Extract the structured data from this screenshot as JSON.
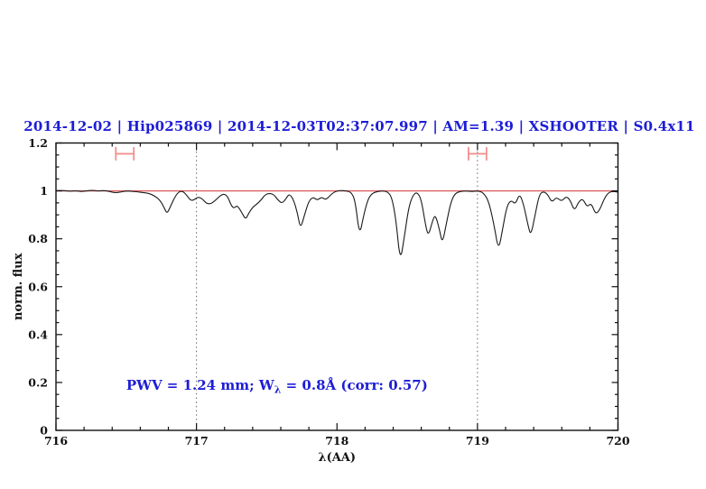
{
  "title": {
    "text": "2014-12-02 | Hip025869 | 2014-12-03T02:37:07.997 | AM=1.39 | XSHOOTER | S0.4x11",
    "color": "#1d1dd6"
  },
  "colors": {
    "spectrum": "#1a1a1a",
    "continuum": "#e06060",
    "marker": "#f29090",
    "guide_line": "#666666",
    "annotation_blue": "#1d1dd6",
    "axis": "#111111"
  },
  "chart_data": {
    "type": "line",
    "title": "2014-12-02 | Hip025869 | 2014-12-03T02:37:07.997 | AM=1.39 | XSHOOTER | S0.4x11",
    "xlabel": "λ(AA)",
    "ylabel": "norm. flux",
    "xlim": [
      716,
      720
    ],
    "ylim": [
      0,
      1.2
    ],
    "grid": "off",
    "legend": "none",
    "x_ticks": [
      716,
      717,
      718,
      719,
      720
    ],
    "x_tick_labels": [
      "716",
      "717",
      "718",
      "719",
      "720"
    ],
    "x_minor_step": 0.2,
    "y_ticks": [
      0,
      0.2,
      0.4,
      0.6,
      0.8,
      1,
      1.2
    ],
    "y_tick_labels": [
      "0",
      "0.2",
      "0.4",
      "0.6",
      "0.8",
      "1",
      "1.2"
    ],
    "y_minor_step": 0.05,
    "dotted_vlines": [
      717,
      719
    ],
    "continuum_line": {
      "flux": 1.0
    },
    "range_markers": [
      {
        "x": 716.49,
        "y": 1.155,
        "half_width": 0.064,
        "cap_half_height": 0.028
      },
      {
        "x": 719.0,
        "y": 1.155,
        "half_width": 0.064,
        "cap_half_height": 0.028
      }
    ],
    "annotation": {
      "x": 716.5,
      "y": 0.17,
      "segments": [
        {
          "t": "PWV  =  1.24  mm;  W"
        },
        {
          "t": "λ",
          "sub": true
        },
        {
          "t": "  =  0.8Å  (corr: 0.57)"
        }
      ]
    },
    "series": [
      {
        "name": "observed-spectrum",
        "points": [
          [
            716.0,
            1.001
          ],
          [
            716.05,
            1.002
          ],
          [
            716.1,
            0.998
          ],
          [
            716.14,
            1.001
          ],
          [
            716.18,
            0.997
          ],
          [
            716.22,
            1.0
          ],
          [
            716.26,
            1.003
          ],
          [
            716.3,
            0.999
          ],
          [
            716.34,
            1.002
          ],
          [
            716.38,
            0.998
          ],
          [
            716.42,
            0.992
          ],
          [
            716.46,
            0.995
          ],
          [
            716.5,
            1.0
          ],
          [
            716.54,
            0.998
          ],
          [
            716.58,
            0.996
          ],
          [
            716.62,
            0.993
          ],
          [
            716.66,
            0.99
          ],
          [
            716.7,
            0.98
          ],
          [
            716.74,
            0.962
          ],
          [
            716.77,
            0.93
          ],
          [
            716.79,
            0.905
          ],
          [
            716.81,
            0.928
          ],
          [
            716.84,
            0.968
          ],
          [
            716.87,
            0.995
          ],
          [
            716.9,
            1.0
          ],
          [
            716.93,
            0.983
          ],
          [
            716.96,
            0.958
          ],
          [
            716.99,
            0.965
          ],
          [
            717.01,
            0.975
          ],
          [
            717.04,
            0.968
          ],
          [
            717.07,
            0.948
          ],
          [
            717.1,
            0.945
          ],
          [
            717.13,
            0.958
          ],
          [
            717.16,
            0.975
          ],
          [
            717.19,
            0.988
          ],
          [
            717.22,
            0.98
          ],
          [
            717.25,
            0.935
          ],
          [
            717.27,
            0.928
          ],
          [
            717.29,
            0.94
          ],
          [
            717.32,
            0.912
          ],
          [
            717.35,
            0.88
          ],
          [
            717.37,
            0.905
          ],
          [
            717.4,
            0.932
          ],
          [
            717.43,
            0.945
          ],
          [
            717.46,
            0.962
          ],
          [
            717.49,
            0.985
          ],
          [
            717.52,
            0.99
          ],
          [
            717.55,
            0.985
          ],
          [
            717.58,
            0.962
          ],
          [
            717.61,
            0.947
          ],
          [
            717.64,
            0.97
          ],
          [
            717.66,
            0.988
          ],
          [
            717.69,
            0.965
          ],
          [
            717.72,
            0.905
          ],
          [
            717.74,
            0.84
          ],
          [
            717.77,
            0.902
          ],
          [
            717.8,
            0.958
          ],
          [
            717.83,
            0.975
          ],
          [
            717.86,
            0.96
          ],
          [
            717.89,
            0.975
          ],
          [
            717.92,
            0.962
          ],
          [
            717.95,
            0.98
          ],
          [
            717.98,
            0.996
          ],
          [
            718.02,
            1.002
          ],
          [
            718.06,
            1.0
          ],
          [
            718.1,
            0.996
          ],
          [
            718.13,
            0.96
          ],
          [
            718.16,
            0.81
          ],
          [
            718.19,
            0.898
          ],
          [
            718.22,
            0.965
          ],
          [
            718.25,
            0.99
          ],
          [
            718.29,
            0.998
          ],
          [
            718.33,
            1.0
          ],
          [
            718.36,
            0.996
          ],
          [
            718.39,
            0.975
          ],
          [
            718.42,
            0.88
          ],
          [
            718.45,
            0.7
          ],
          [
            718.48,
            0.81
          ],
          [
            718.51,
            0.93
          ],
          [
            718.54,
            0.982
          ],
          [
            718.57,
            0.996
          ],
          [
            718.6,
            0.965
          ],
          [
            718.63,
            0.858
          ],
          [
            718.65,
            0.81
          ],
          [
            718.68,
            0.875
          ],
          [
            718.7,
            0.902
          ],
          [
            718.73,
            0.838
          ],
          [
            718.75,
            0.778
          ],
          [
            718.78,
            0.868
          ],
          [
            718.81,
            0.952
          ],
          [
            718.84,
            0.99
          ],
          [
            718.88,
            0.998
          ],
          [
            718.92,
            1.0
          ],
          [
            718.96,
            0.997
          ],
          [
            719.0,
            1.0
          ],
          [
            719.04,
            0.994
          ],
          [
            719.08,
            0.958
          ],
          [
            719.12,
            0.852
          ],
          [
            719.15,
            0.748
          ],
          [
            719.18,
            0.845
          ],
          [
            719.21,
            0.938
          ],
          [
            719.24,
            0.962
          ],
          [
            719.27,
            0.943
          ],
          [
            719.3,
            0.99
          ],
          [
            719.33,
            0.94
          ],
          [
            719.36,
            0.855
          ],
          [
            719.38,
            0.812
          ],
          [
            719.41,
            0.9
          ],
          [
            719.44,
            0.985
          ],
          [
            719.47,
            0.998
          ],
          [
            719.5,
            0.985
          ],
          [
            719.53,
            0.951
          ],
          [
            719.56,
            0.975
          ],
          [
            719.6,
            0.955
          ],
          [
            719.63,
            0.978
          ],
          [
            719.66,
            0.962
          ],
          [
            719.69,
            0.915
          ],
          [
            719.72,
            0.955
          ],
          [
            719.75,
            0.968
          ],
          [
            719.78,
            0.932
          ],
          [
            719.81,
            0.95
          ],
          [
            719.84,
            0.902
          ],
          [
            719.87,
            0.92
          ],
          [
            719.9,
            0.965
          ],
          [
            719.93,
            0.992
          ],
          [
            719.96,
            0.998
          ],
          [
            720.0,
            0.995
          ]
        ]
      }
    ]
  }
}
